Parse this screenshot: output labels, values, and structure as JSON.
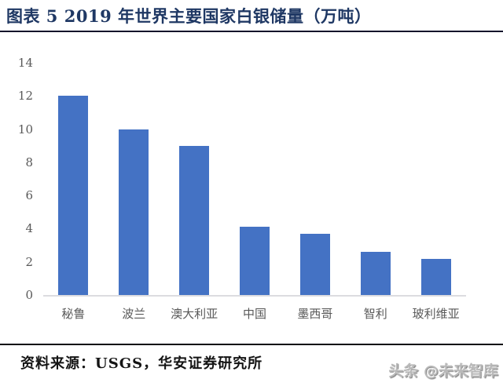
{
  "header": {
    "title": "图表 5 2019 年世界主要国家白银储量（万吨）"
  },
  "chart_data": {
    "type": "bar",
    "title": "2019 年世界主要国家白银储量（万吨）",
    "categories": [
      "秘鲁",
      "波兰",
      "澳大利亚",
      "中国",
      "墨西哥",
      "智利",
      "玻利维亚"
    ],
    "values": [
      12,
      10,
      9,
      4.1,
      3.7,
      2.6,
      2.2
    ],
    "xlabel": "",
    "ylabel": "",
    "ylim": [
      0,
      14
    ],
    "y_ticks": [
      0,
      2,
      4,
      6,
      8,
      10,
      12,
      14
    ],
    "grid": false,
    "legend": "none",
    "bar_color": "#4472C4"
  },
  "footer": {
    "source_label": "资料来源：USGS，华安证券研究所",
    "watermark": "头条 @未来智库"
  },
  "colors": {
    "title_text": "#1F3864",
    "bar": "#4472C4",
    "axis_text": "#595959",
    "baseline": "#DCDCE0",
    "rule": "#111111",
    "watermark_gray": "#b9b9b9"
  }
}
